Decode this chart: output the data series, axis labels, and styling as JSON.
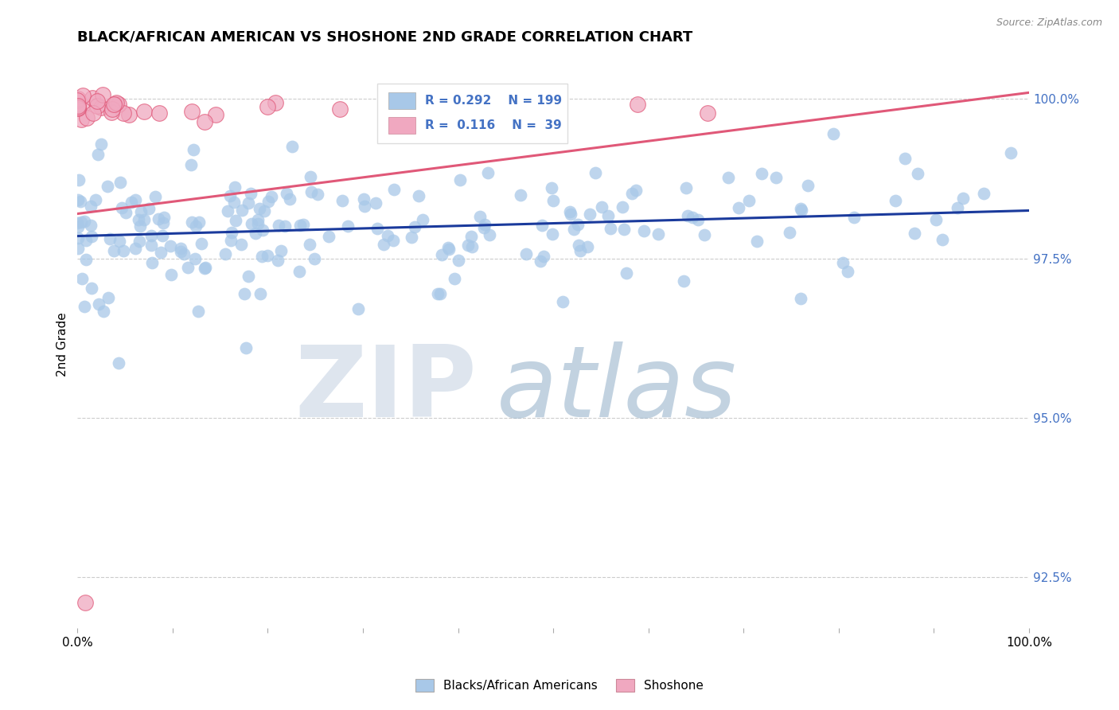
{
  "title": "BLACK/AFRICAN AMERICAN VS SHOSHONE 2ND GRADE CORRELATION CHART",
  "source": "Source: ZipAtlas.com",
  "ylabel": "2nd Grade",
  "xlim": [
    0.0,
    1.0
  ],
  "ylim": [
    0.917,
    1.006
  ],
  "yticks": [
    0.925,
    0.95,
    0.975,
    1.0
  ],
  "ytick_labels": [
    "92.5%",
    "95.0%",
    "97.5%",
    "100.0%"
  ],
  "blue_R": 0.292,
  "blue_N": 199,
  "pink_R": 0.116,
  "pink_N": 39,
  "blue_color": "#a8c8e8",
  "pink_color": "#f0a8c0",
  "blue_line_color": "#1a3a9c",
  "pink_line_color": "#e05878",
  "legend_label_blue": "Blacks/African Americans",
  "legend_label_pink": "Shoshone",
  "blue_line_x0": 0.0,
  "blue_line_x1": 1.0,
  "blue_line_y0": 0.9785,
  "blue_line_y1": 0.9825,
  "pink_line_x0": 0.0,
  "pink_line_x1": 1.0,
  "pink_line_y0": 0.982,
  "pink_line_y1": 1.001,
  "watermark_zip": "ZIP",
  "watermark_atlas": "atlas"
}
